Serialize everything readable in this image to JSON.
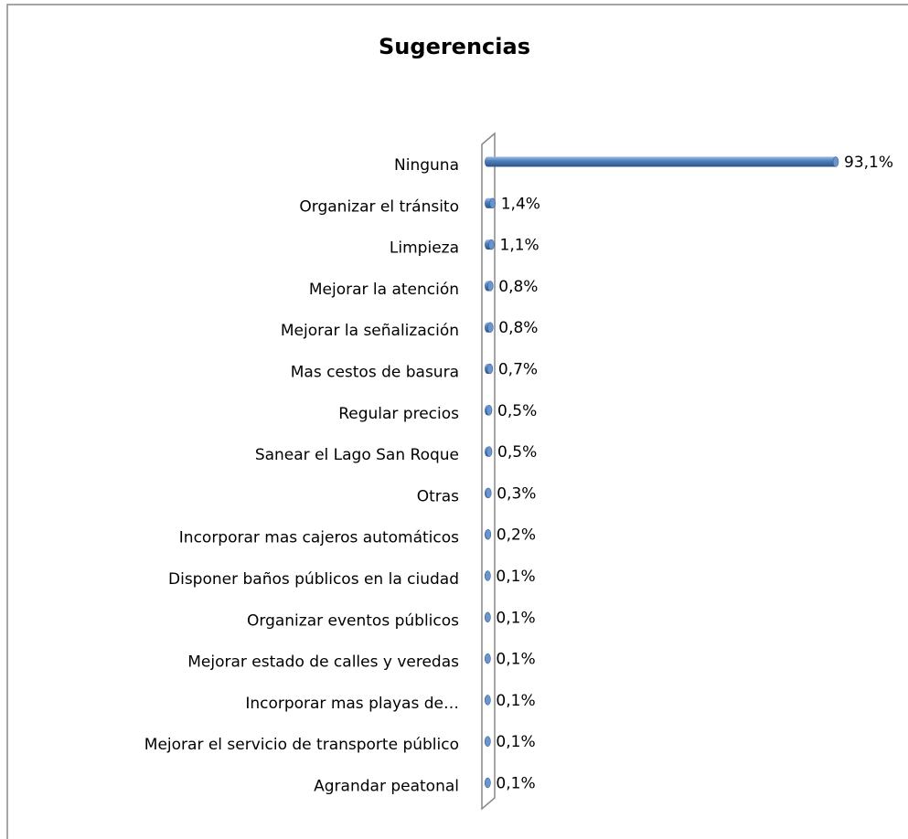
{
  "chart_data": {
    "type": "bar",
    "orientation": "horizontal",
    "title": "Sugerencias",
    "categories": [
      "Ninguna",
      "Organizar el tránsito",
      "Limpieza",
      "Mejorar la atención ",
      "Mejorar la señalización",
      "Mas cestos de basura",
      "Regular precios",
      "Sanear el Lago San Roque",
      "Otras",
      "Incorporar mas cajeros automáticos",
      "Disponer baños públicos en la ciudad",
      "Organizar eventos públicos",
      "Mejorar estado de calles y veredas",
      "Incorporar mas playas de…",
      "Mejorar el servicio de transporte público",
      "Agrandar peatonal"
    ],
    "values": [
      93.1,
      1.4,
      1.1,
      0.8,
      0.8,
      0.7,
      0.5,
      0.5,
      0.3,
      0.2,
      0.1,
      0.1,
      0.1,
      0.1,
      0.1,
      0.1
    ],
    "value_labels": [
      "93,1%",
      "1,4%",
      "1,1%",
      "0,8%",
      "0,8%",
      "0,7%",
      "0,5%",
      "0,5%",
      "0,3%",
      "0,2%",
      "0,1%",
      "0,1%",
      "0,1%",
      "0,1%",
      "0,1%",
      "0,1%"
    ],
    "color": "#4f81bd"
  }
}
